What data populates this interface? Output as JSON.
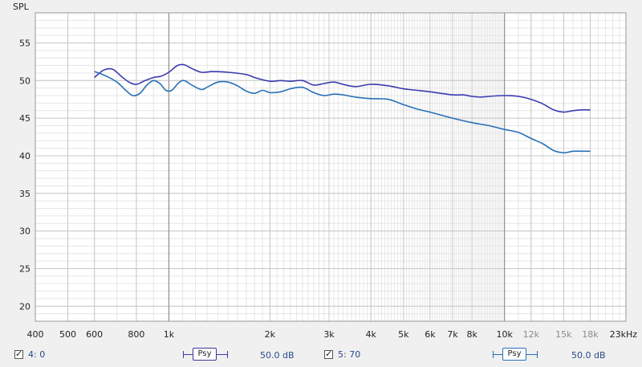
{
  "chart_data": {
    "type": "line",
    "ylabel": "SPL",
    "xscale": "log",
    "xlim": [
      400,
      23000
    ],
    "ylim": [
      18,
      59
    ],
    "y_ticks": [
      20,
      25,
      30,
      35,
      40,
      45,
      50,
      55
    ],
    "x_ticks": [
      {
        "value": 400,
        "label": "400"
      },
      {
        "value": 500,
        "label": "500"
      },
      {
        "value": 600,
        "label": "600"
      },
      {
        "value": 800,
        "label": "800"
      },
      {
        "value": 1000,
        "label": "1k"
      },
      {
        "value": 2000,
        "label": "2k"
      },
      {
        "value": 3000,
        "label": "3k"
      },
      {
        "value": 4000,
        "label": "4k"
      },
      {
        "value": 5000,
        "label": "5k"
      },
      {
        "value": 6000,
        "label": "6k"
      },
      {
        "value": 7000,
        "label": "7k"
      },
      {
        "value": 8000,
        "label": "8k"
      },
      {
        "value": 10000,
        "label": "10k"
      },
      {
        "value": 12000,
        "label": "12k",
        "faded": true
      },
      {
        "value": 15000,
        "label": "15k",
        "faded": true
      },
      {
        "value": 18000,
        "label": "18k",
        "faded": true
      },
      {
        "value": 23000,
        "label": "23kHz"
      }
    ],
    "grid": true,
    "series": [
      {
        "name": "4: 0",
        "color": "#3a3ab0",
        "points": [
          [
            600,
            50.4
          ],
          [
            640,
            51.4
          ],
          [
            680,
            51.5
          ],
          [
            720,
            50.6
          ],
          [
            760,
            49.8
          ],
          [
            800,
            49.5
          ],
          [
            850,
            50.0
          ],
          [
            900,
            50.4
          ],
          [
            950,
            50.6
          ],
          [
            1000,
            51.1
          ],
          [
            1060,
            52.0
          ],
          [
            1110,
            52.1
          ],
          [
            1170,
            51.6
          ],
          [
            1250,
            51.1
          ],
          [
            1350,
            51.2
          ],
          [
            1500,
            51.1
          ],
          [
            1700,
            50.8
          ],
          [
            1800,
            50.4
          ],
          [
            2000,
            49.9
          ],
          [
            2150,
            50.0
          ],
          [
            2300,
            49.9
          ],
          [
            2500,
            50.0
          ],
          [
            2700,
            49.4
          ],
          [
            2900,
            49.6
          ],
          [
            3100,
            49.8
          ],
          [
            3300,
            49.5
          ],
          [
            3600,
            49.2
          ],
          [
            4000,
            49.5
          ],
          [
            4500,
            49.3
          ],
          [
            5000,
            48.9
          ],
          [
            5500,
            48.7
          ],
          [
            6000,
            48.5
          ],
          [
            7000,
            48.1
          ],
          [
            7500,
            48.1
          ],
          [
            8000,
            47.9
          ],
          [
            8500,
            47.8
          ],
          [
            9000,
            47.9
          ],
          [
            10000,
            48.0
          ],
          [
            11000,
            47.9
          ],
          [
            12000,
            47.5
          ],
          [
            13000,
            46.9
          ],
          [
            14000,
            46.1
          ],
          [
            15000,
            45.8
          ],
          [
            16000,
            46.0
          ],
          [
            17000,
            46.1
          ],
          [
            18000,
            46.1
          ]
        ]
      },
      {
        "name": "5: 70",
        "color": "#2870b8",
        "points": [
          [
            600,
            51.2
          ],
          [
            650,
            50.6
          ],
          [
            700,
            49.8
          ],
          [
            740,
            48.8
          ],
          [
            780,
            48.0
          ],
          [
            820,
            48.3
          ],
          [
            860,
            49.4
          ],
          [
            900,
            50.0
          ],
          [
            940,
            49.6
          ],
          [
            980,
            48.7
          ],
          [
            1020,
            48.7
          ],
          [
            1070,
            49.7
          ],
          [
            1110,
            50.0
          ],
          [
            1170,
            49.4
          ],
          [
            1250,
            48.8
          ],
          [
            1310,
            49.2
          ],
          [
            1400,
            49.8
          ],
          [
            1500,
            49.8
          ],
          [
            1600,
            49.3
          ],
          [
            1700,
            48.6
          ],
          [
            1800,
            48.3
          ],
          [
            1900,
            48.7
          ],
          [
            2000,
            48.4
          ],
          [
            2150,
            48.5
          ],
          [
            2300,
            48.9
          ],
          [
            2500,
            49.1
          ],
          [
            2700,
            48.4
          ],
          [
            2900,
            48.0
          ],
          [
            3100,
            48.2
          ],
          [
            3300,
            48.1
          ],
          [
            3600,
            47.8
          ],
          [
            4000,
            47.6
          ],
          [
            4500,
            47.5
          ],
          [
            5000,
            46.8
          ],
          [
            5500,
            46.2
          ],
          [
            6000,
            45.8
          ],
          [
            7000,
            45.0
          ],
          [
            8000,
            44.4
          ],
          [
            9000,
            44.0
          ],
          [
            10000,
            43.5
          ],
          [
            11000,
            43.1
          ],
          [
            12000,
            42.3
          ],
          [
            13000,
            41.6
          ],
          [
            14000,
            40.7
          ],
          [
            15000,
            40.4
          ],
          [
            16000,
            40.6
          ],
          [
            17000,
            40.6
          ],
          [
            18000,
            40.6
          ]
        ]
      }
    ]
  },
  "legend": [
    {
      "checked": true,
      "label": "4: 0",
      "psy_label": "Psy",
      "level": "50.0 dB",
      "color": "#3a3ab0"
    },
    {
      "checked": true,
      "label": "5: 70",
      "psy_label": "Psy",
      "level": "50.0 dB",
      "color": "#2870b8"
    }
  ]
}
